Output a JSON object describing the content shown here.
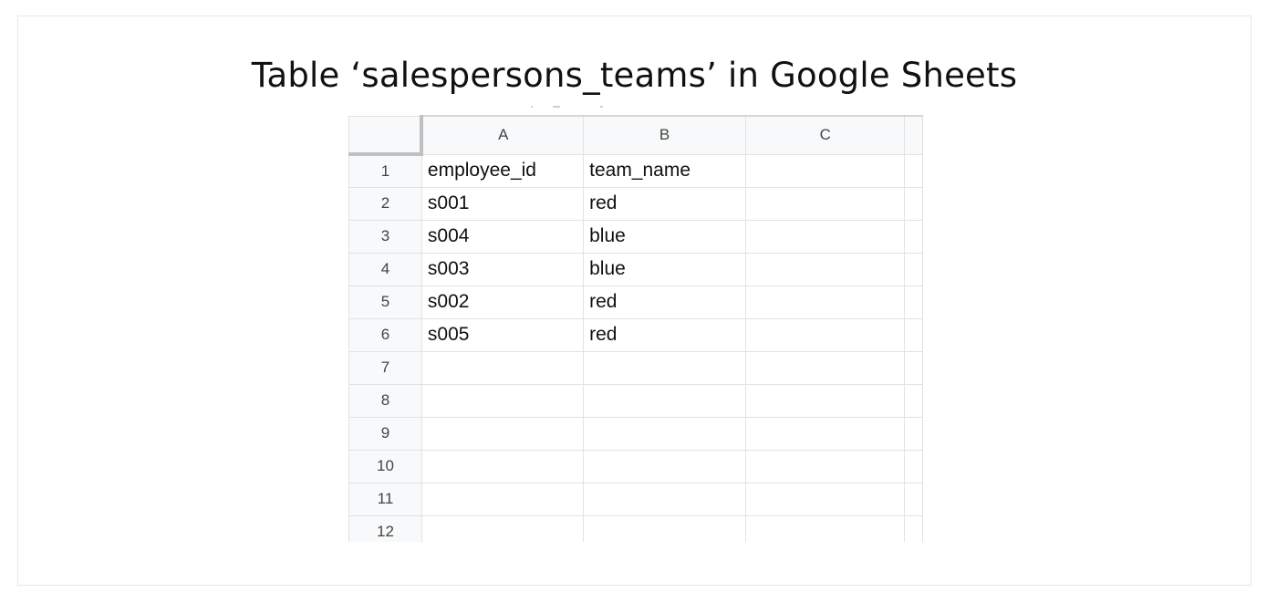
{
  "title": "Table ‘salespersons_teams’ in Google Sheets",
  "sheet": {
    "columns": [
      "A",
      "B",
      "C"
    ],
    "rows": [
      {
        "num": "1",
        "cells": [
          "employee_id",
          "team_name",
          ""
        ]
      },
      {
        "num": "2",
        "cells": [
          "s001",
          "red",
          ""
        ]
      },
      {
        "num": "3",
        "cells": [
          "s004",
          "blue",
          ""
        ]
      },
      {
        "num": "4",
        "cells": [
          "s003",
          "blue",
          ""
        ]
      },
      {
        "num": "5",
        "cells": [
          "s002",
          "red",
          ""
        ]
      },
      {
        "num": "6",
        "cells": [
          "s005",
          "red",
          ""
        ]
      },
      {
        "num": "7",
        "cells": [
          "",
          "",
          ""
        ]
      },
      {
        "num": "8",
        "cells": [
          "",
          "",
          ""
        ]
      },
      {
        "num": "9",
        "cells": [
          "",
          "",
          ""
        ]
      },
      {
        "num": "10",
        "cells": [
          "",
          "",
          ""
        ]
      },
      {
        "num": "11",
        "cells": [
          "",
          "",
          ""
        ]
      },
      {
        "num": "12",
        "cells": [
          "",
          "",
          ""
        ]
      }
    ]
  }
}
